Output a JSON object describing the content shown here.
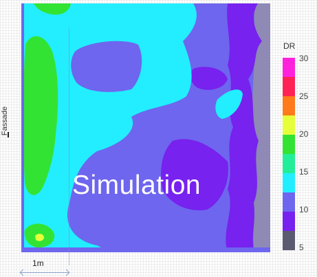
{
  "image": {
    "overlay_label": "Simulation",
    "facade_label": "Fassade",
    "scale_label": "1m"
  },
  "legend": {
    "title": "DR",
    "ticks": [
      "30",
      "25",
      "20",
      "15",
      "10",
      "5"
    ],
    "bands": [
      {
        "range": "27.5-30",
        "color": "#ff22dd"
      },
      {
        "range": "25-27.5",
        "color": "#ff2255"
      },
      {
        "range": "22.5-25",
        "color": "#ff7a1a"
      },
      {
        "range": "20-22.5",
        "color": "#e6ff3a"
      },
      {
        "range": "17.5-20",
        "color": "#33e333"
      },
      {
        "range": "15-17.5",
        "color": "#22ee99"
      },
      {
        "range": "12.5-15",
        "color": "#22eeff"
      },
      {
        "range": "10-12.5",
        "color": "#6e66ee"
      },
      {
        "range": "7.5-10",
        "color": "#7722ee"
      },
      {
        "range": "5-7.5",
        "color": "#5a5a70"
      }
    ]
  },
  "colors": {
    "background_zone": "#6e66ee",
    "cyan_zone": "#22eeff",
    "green_zone": "#33e333",
    "purple_zone": "#7722ee",
    "edge_zone": "#8f89b6"
  }
}
